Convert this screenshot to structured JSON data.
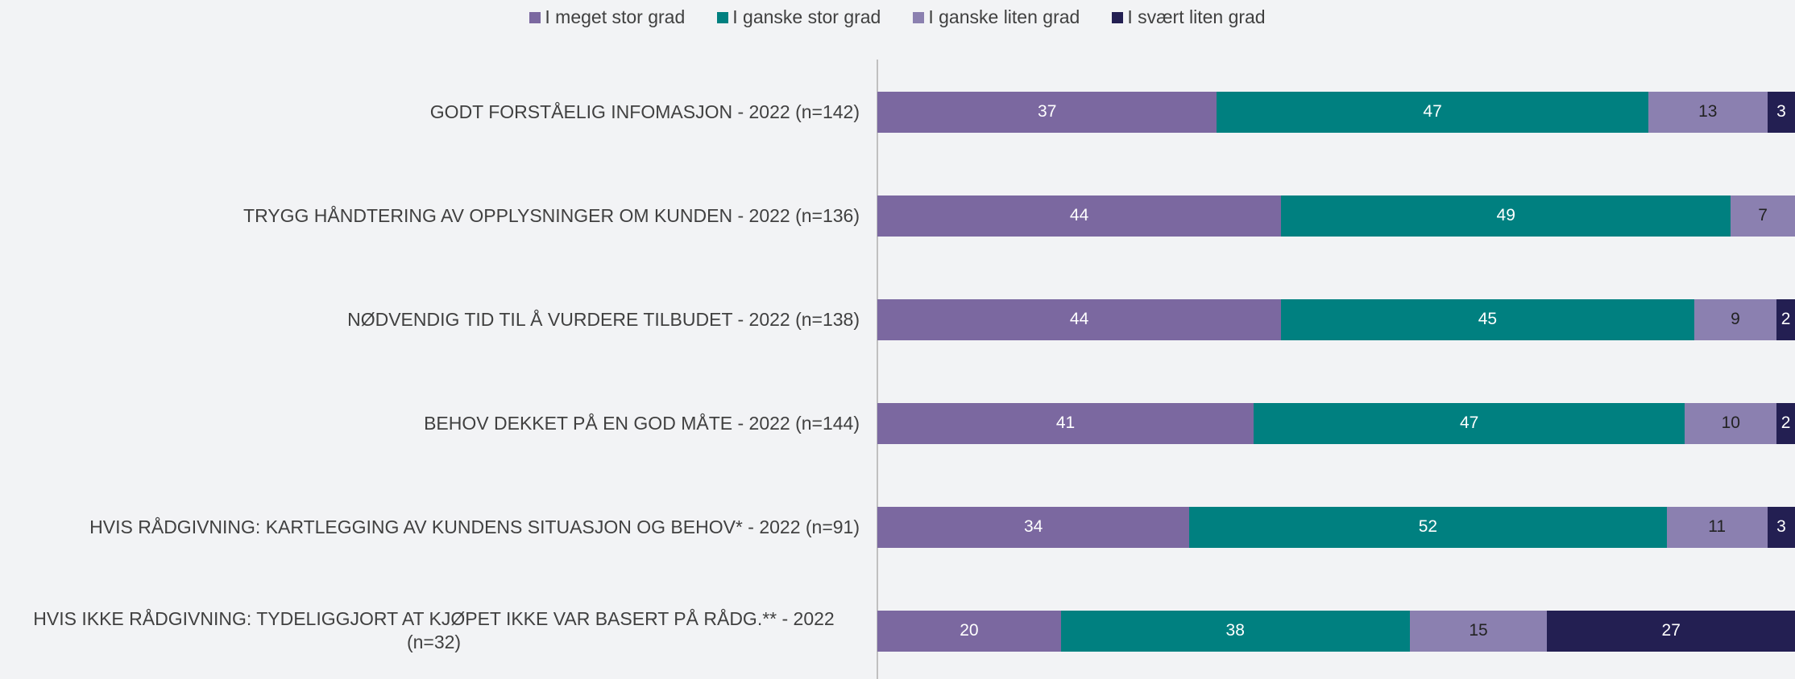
{
  "chart_data": {
    "type": "stacked-horizontal-bar",
    "categories": [
      "GODT FORSTÅELIG INFOMASJON - 2022 (n=142)",
      "TRYGG HÅNDTERING AV OPPLYSNINGER OM KUNDEN - 2022 (n=136)",
      "NØDVENDIG TID TIL Å VURDERE TILBUDET - 2022 (n=138)",
      "BEHOV DEKKET PÅ EN GOD MÅTE - 2022 (n=144)",
      "HVIS RÅDGIVNING: KARTLEGGING AV KUNDENS SITUASJON OG BEHOV* - 2022 (n=91)",
      "HVIS IKKE RÅDGIVNING: TYDELIGGJORT AT KJØPET IKKE VAR BASERT PÅ RÅDG.**  - 2022 (n=32)"
    ],
    "series": [
      {
        "name": "I meget stor grad",
        "color": "#7b68a0",
        "label_color": "#ffffff",
        "values": [
          37,
          44,
          44,
          41,
          34,
          20
        ]
      },
      {
        "name": "I ganske stor grad",
        "color": "#008080",
        "label_color": "#ffffff",
        "values": [
          47,
          49,
          45,
          47,
          52,
          38
        ]
      },
      {
        "name": "I ganske liten grad",
        "color": "#8b80b0",
        "label_color": "#222222",
        "values": [
          13,
          7,
          9,
          10,
          11,
          15
        ]
      },
      {
        "name": "I svært liten grad",
        "color": "#231f52",
        "label_color": "#ffffff",
        "values": [
          3,
          null,
          2,
          2,
          3,
          27
        ]
      }
    ],
    "xlim": [
      0,
      100
    ],
    "legend": "top"
  }
}
